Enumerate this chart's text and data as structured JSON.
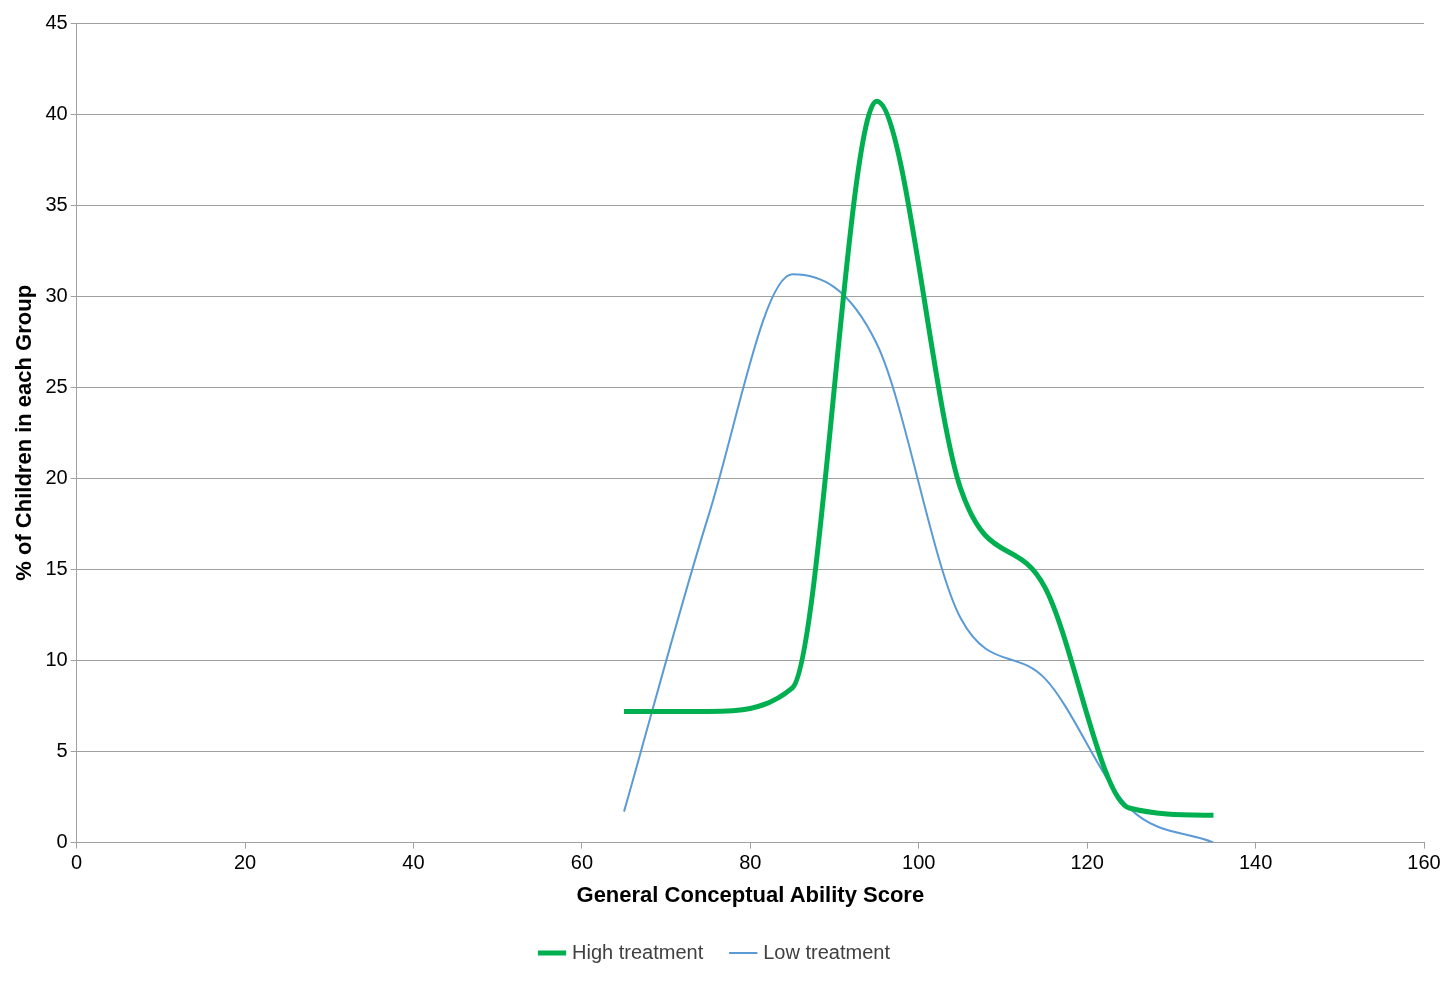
{
  "chart_data": {
    "type": "line",
    "xlabel": "General Conceptual Ability Score",
    "ylabel": "% of Children in each Group",
    "xlim": [
      0,
      160
    ],
    "xticks": [
      0,
      20,
      40,
      60,
      80,
      100,
      120,
      140,
      160
    ],
    "ylim": [
      0,
      45
    ],
    "yticks": [
      0,
      5,
      10,
      15,
      20,
      25,
      30,
      35,
      40,
      45
    ],
    "grid": "y",
    "legend": "bottom",
    "marker": "none",
    "series": [
      {
        "name": "High treatment",
        "color": "#00b050",
        "x": [
          65,
          75,
          85,
          95,
          105,
          115,
          125,
          135
        ],
        "values": [
          7.2,
          7.2,
          8.5,
          40.7,
          19.4,
          14.0,
          1.9,
          1.5
        ]
      },
      {
        "name": "Low treatment",
        "color": "#5b9bd5",
        "x": [
          65,
          75,
          85,
          95,
          105,
          115,
          125,
          135
        ],
        "values": [
          1.7,
          17.9,
          31.2,
          27.4,
          12.3,
          9.0,
          1.9,
          0
        ]
      }
    ]
  }
}
